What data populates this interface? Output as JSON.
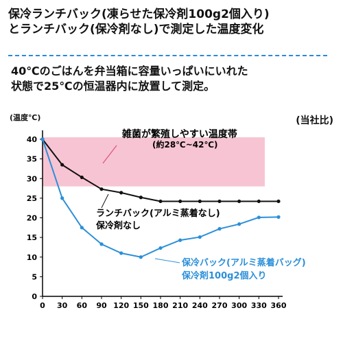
{
  "title": {
    "line1": "保冷ランチバック(凍らせた保冷剤100g2個入り)",
    "line2": "とランチバック(保冷剤なし)で測定した温度変化"
  },
  "description": {
    "line1": "40℃のごはんを弁当箱に容量いっぱいにいれた",
    "line2": "状態で25℃の恒温器内に放置して測定。"
  },
  "note": "(当社比)",
  "colors": {
    "band": "#f7c4d3",
    "series_black": "#111111",
    "series_blue": "#2b8fd9",
    "rule": "#2b87d9"
  },
  "chart_data": {
    "type": "line",
    "ylabel": "(温度℃)",
    "xlim": [
      0,
      370
    ],
    "ylim": [
      0,
      42
    ],
    "x_ticks": [
      0,
      30,
      60,
      90,
      120,
      150,
      180,
      210,
      240,
      270,
      300,
      330,
      360
    ],
    "y_ticks": [
      0,
      5,
      10,
      15,
      20,
      25,
      30,
      35,
      40
    ],
    "grid": false,
    "band": {
      "from": 28,
      "to": 42,
      "label_line1": "雑菌が繁殖しやすい温度帯",
      "label_line2": "(約28℃~42℃)"
    },
    "series": [
      {
        "name_line1": "ランチバック(アルミ蒸着なし)",
        "name_line2": "保冷剤なし",
        "color": "#111111",
        "x": [
          0,
          30,
          60,
          90,
          120,
          150,
          180,
          210,
          240,
          270,
          300,
          330,
          360
        ],
        "y": [
          40,
          33.5,
          30.3,
          27.3,
          26.4,
          25.2,
          24.2,
          24.2,
          24.2,
          24.2,
          24.2,
          24.2,
          24.2
        ]
      },
      {
        "name_line1": "保冷バック(アルミ蒸着バッグ)",
        "name_line2": "保冷剤100g2個入り",
        "color": "#2b8fd9",
        "x": [
          0,
          30,
          60,
          90,
          120,
          150,
          180,
          210,
          240,
          270,
          300,
          330,
          360
        ],
        "y": [
          40,
          25,
          17.5,
          13.3,
          11,
          10,
          12.3,
          14.3,
          15.1,
          17.2,
          18.4,
          20.1,
          20.2
        ]
      }
    ]
  }
}
